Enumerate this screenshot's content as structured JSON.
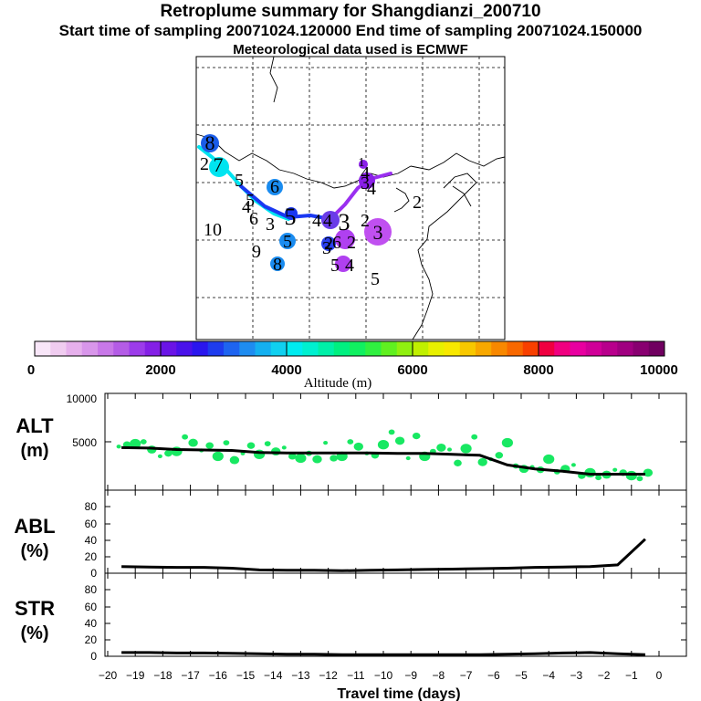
{
  "header": {
    "title": "Retroplume summary for Shangdianzi_200710",
    "sampling": "Start time of sampling 20071024.120000     End time of sampling 20071024.150000",
    "met": "Meteorological data used is ECMWF"
  },
  "colors": {
    "track_west": "#00e4f0",
    "track_mid": "#1a38f2",
    "track_east": "#9a2ff0",
    "alt_points": "#18e862",
    "line": "#000000"
  },
  "chart_data": [
    {
      "type": "scatter",
      "title": "Retroplume map",
      "map_labels": [
        {
          "text": "8",
          "color": "#1a5ce8"
        },
        {
          "text": "7",
          "color": "#00e4f0"
        },
        {
          "text": "2",
          "color": "#00e4f0"
        },
        {
          "text": "5",
          "color": "#ffffff"
        },
        {
          "text": "6",
          "color": "#1a8cf0"
        },
        {
          "text": "5",
          "color": "#ffffff"
        },
        {
          "text": "6",
          "color": "#ffffff"
        },
        {
          "text": "4",
          "color": "#ffffff"
        },
        {
          "text": "3",
          "color": "#ffffff"
        },
        {
          "text": "5",
          "color": "#1a38f2"
        },
        {
          "text": "4",
          "color": "#1a38f2"
        },
        {
          "text": "1",
          "color": "#ffffff"
        },
        {
          "text": "0",
          "color": "#ffffff"
        },
        {
          "text": "9",
          "color": "#ffffff"
        },
        {
          "text": "5",
          "color": "#1a8cf0"
        },
        {
          "text": "8",
          "color": "#1a8cf0"
        },
        {
          "text": "4",
          "color": "#7a20e8"
        },
        {
          "text": "3",
          "color": "#6a3ce8"
        },
        {
          "text": "2",
          "color": "#2a40f0"
        },
        {
          "text": "3",
          "color": "#1a38f2"
        },
        {
          "text": "2",
          "color": "#c050f0"
        },
        {
          "text": "6",
          "color": "#b040f0"
        },
        {
          "text": "2",
          "color": "#b040f0"
        },
        {
          "text": "5",
          "color": "#b040f0"
        },
        {
          "text": "4",
          "color": "#b040f0"
        },
        {
          "text": "5",
          "color": "#ffffff"
        },
        {
          "text": "3",
          "color": "#c050f0"
        },
        {
          "text": "2",
          "color": "#d070f0"
        },
        {
          "text": "3",
          "color": "#ffffff"
        },
        {
          "text": "4",
          "color": "#8a20e8"
        },
        {
          "text": "1",
          "color": "#8a20e8"
        },
        {
          "text": "4",
          "color": "#8a20e8"
        }
      ]
    },
    {
      "type": "bar",
      "title": "Altitude (m)",
      "colorbar_ticks": [
        "0",
        "2000",
        "4000",
        "6000",
        "8000",
        "10000"
      ],
      "range": [
        0,
        10000
      ]
    },
    {
      "type": "line",
      "ylabel": "ALT\n(m)",
      "ylabel_line1": "ALT",
      "ylabel_line2": "(m)",
      "ylim": [
        0,
        10000
      ],
      "yticks": [
        "0",
        "5000",
        "10000"
      ],
      "x": [
        -19.5,
        -18.5,
        -17.5,
        -16.5,
        -15.5,
        -14.5,
        -13.5,
        -12.5,
        -11.5,
        -10.5,
        -9.5,
        -8.5,
        -7.5,
        -6.5,
        -5.5,
        -4.5,
        -3.5,
        -2.5,
        -1.5,
        -0.5
      ],
      "values": [
        4400,
        4350,
        4200,
        4150,
        4100,
        3900,
        3850,
        3850,
        3850,
        3850,
        3800,
        3800,
        3700,
        3600,
        2600,
        2200,
        1950,
        1650,
        1650,
        1650
      ],
      "scatter_values": [
        4500,
        4700,
        4800,
        5000,
        4200,
        3500,
        3800,
        4000,
        5500,
        4900,
        4100,
        4600,
        3500,
        4900,
        3100,
        3800,
        4600,
        3700,
        4800,
        4000,
        4400,
        3500,
        3300,
        3800,
        3200,
        4900,
        3300,
        3500,
        5000,
        4500,
        3800,
        3600,
        4700,
        6000,
        5100,
        3300,
        5600,
        3500,
        4000,
        4400,
        4200,
        2800,
        4300,
        5500,
        2900,
        3200,
        3600,
        4900,
        2500,
        2200,
        2400,
        2100,
        3200,
        1900,
        2200,
        2600,
        1500,
        1800,
        1300,
        1600,
        2100,
        1800,
        1500,
        1200,
        1800
      ]
    },
    {
      "type": "line",
      "ylabel": "ABL\n(%)",
      "ylabel_line1": "ABL",
      "ylabel_line2": "(%)",
      "ylim": [
        0,
        100
      ],
      "yticks": [
        "0",
        "20",
        "40",
        "60",
        "80"
      ],
      "x": [
        -19.5,
        -18.5,
        -17.5,
        -16.5,
        -15.5,
        -14.5,
        -13.5,
        -12.5,
        -11.5,
        -10.5,
        -9.5,
        -8.5,
        -7.5,
        -6.5,
        -5.5,
        -4.5,
        -3.5,
        -2.5,
        -1.5,
        -0.5
      ],
      "values": [
        8,
        7.5,
        7,
        7,
        6,
        4,
        3.5,
        3.5,
        3,
        3.5,
        4,
        4.5,
        5,
        5.5,
        6,
        7,
        7.5,
        8,
        10,
        41
      ]
    },
    {
      "type": "line",
      "ylabel": "STR\n(%)",
      "ylabel_line1": "STR",
      "ylabel_line2": "(%)",
      "ylim": [
        0,
        100
      ],
      "yticks": [
        "0",
        "20",
        "40",
        "60",
        "80"
      ],
      "x": [
        -19.5,
        -18.5,
        -17.5,
        -16.5,
        -15.5,
        -14.5,
        -13.5,
        -12.5,
        -11.5,
        -10.5,
        -9.5,
        -8.5,
        -7.5,
        -6.5,
        -5.5,
        -4.5,
        -3.5,
        -2.5,
        -1.5,
        -0.5
      ],
      "values": [
        4.5,
        4.5,
        4,
        4,
        3.5,
        3,
        2.5,
        2.5,
        2,
        2,
        2,
        2,
        2,
        2,
        2.5,
        3,
        4,
        4.5,
        3,
        2
      ],
      "xlabel": "Travel time (days)",
      "xticks": [
        "−20",
        "−19",
        "−18",
        "−17",
        "−16",
        "−15",
        "−14",
        "−13",
        "−12",
        "−11",
        "−10",
        "−9",
        "−8",
        "−7",
        "−6",
        "−5",
        "−4",
        "−3",
        "−2",
        "−1",
        "0"
      ]
    }
  ]
}
